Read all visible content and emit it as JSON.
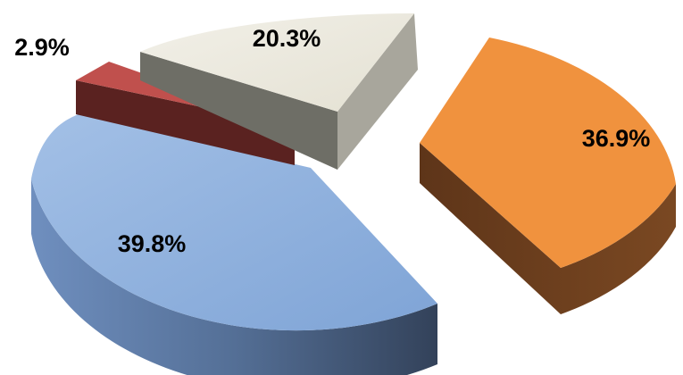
{
  "chart_data": {
    "type": "pie",
    "style": "3d-exploded",
    "title": "",
    "legend": "none",
    "slices": [
      {
        "label": "36.9%",
        "value": 36.9,
        "color": "#f0923e",
        "side_color": "#6b3f1f"
      },
      {
        "label": "39.8%",
        "value": 39.8,
        "color": "#8aaedd",
        "side_color": "#42536b"
      },
      {
        "label": "2.9%",
        "value": 2.9,
        "color": "#c0504d",
        "side_color": "#5a2220"
      },
      {
        "label": "20.3%",
        "value": 20.3,
        "color": "#ebe8dc",
        "side_color": "#6e6e66"
      }
    ]
  }
}
